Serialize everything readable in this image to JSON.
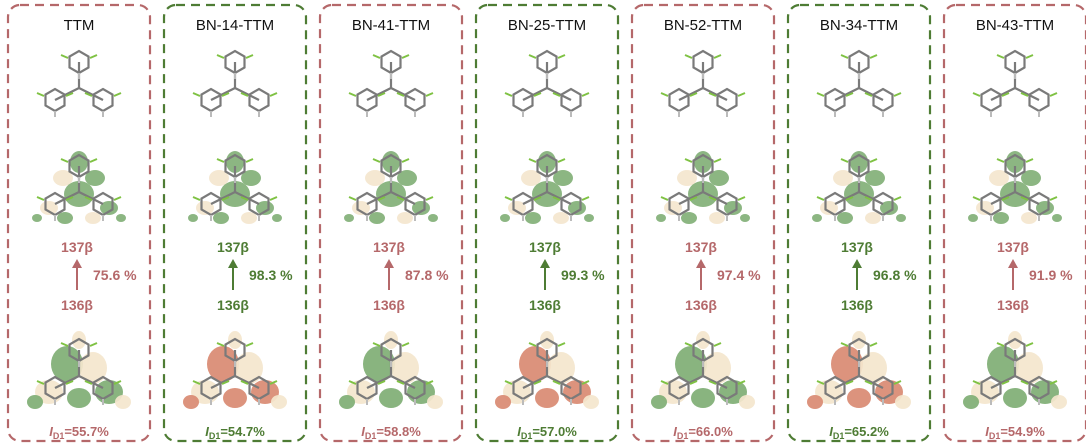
{
  "colors": {
    "red": "#b5686a",
    "green": "#4e7c34",
    "lobe_green": "#7fae74",
    "lobe_orange": "#d98a72",
    "lobe_cream": "#f4e6cd"
  },
  "panels": [
    {
      "title": "TTM",
      "upper": "137β",
      "lower": "136β",
      "percent": "75.6 %",
      "index_symbol": "I",
      "index_sub": "D1",
      "index_value": "=55.7%",
      "frame_color": "red",
      "homo_lobe": "green"
    },
    {
      "title": "BN-14-TTM",
      "upper": "137β",
      "lower": "136β",
      "percent": "98.3 %",
      "index_symbol": "I",
      "index_sub": "D1",
      "index_value": "=54.7%",
      "frame_color": "green",
      "homo_lobe": "orange"
    },
    {
      "title": "BN-41-TTM",
      "upper": "137β",
      "lower": "136β",
      "percent": "87.8 %",
      "index_symbol": "I",
      "index_sub": "D1",
      "index_value": "=58.8%",
      "frame_color": "red",
      "homo_lobe": "green"
    },
    {
      "title": "BN-25-TTM",
      "upper": "137β",
      "lower": "136β",
      "percent": "99.3 %",
      "index_symbol": "I",
      "index_sub": "D1",
      "index_value": "=57.0%",
      "frame_color": "green",
      "homo_lobe": "orange"
    },
    {
      "title": "BN-52-TTM",
      "upper": "137β",
      "lower": "136β",
      "percent": "97.4 %",
      "index_symbol": "I",
      "index_sub": "D1",
      "index_value": "=66.0%",
      "frame_color": "red",
      "homo_lobe": "green"
    },
    {
      "title": "BN-34-TTM",
      "upper": "137β",
      "lower": "136β",
      "percent": "96.8 %",
      "index_symbol": "I",
      "index_sub": "D1",
      "index_value": "=65.2%",
      "frame_color": "green",
      "homo_lobe": "orange"
    },
    {
      "title": "BN-43-TTM",
      "upper": "137β",
      "lower": "136β",
      "percent": "91.9 %",
      "index_symbol": "I",
      "index_sub": "D1",
      "index_value": "=54.9%",
      "frame_color": "red",
      "homo_lobe": "green"
    }
  ]
}
